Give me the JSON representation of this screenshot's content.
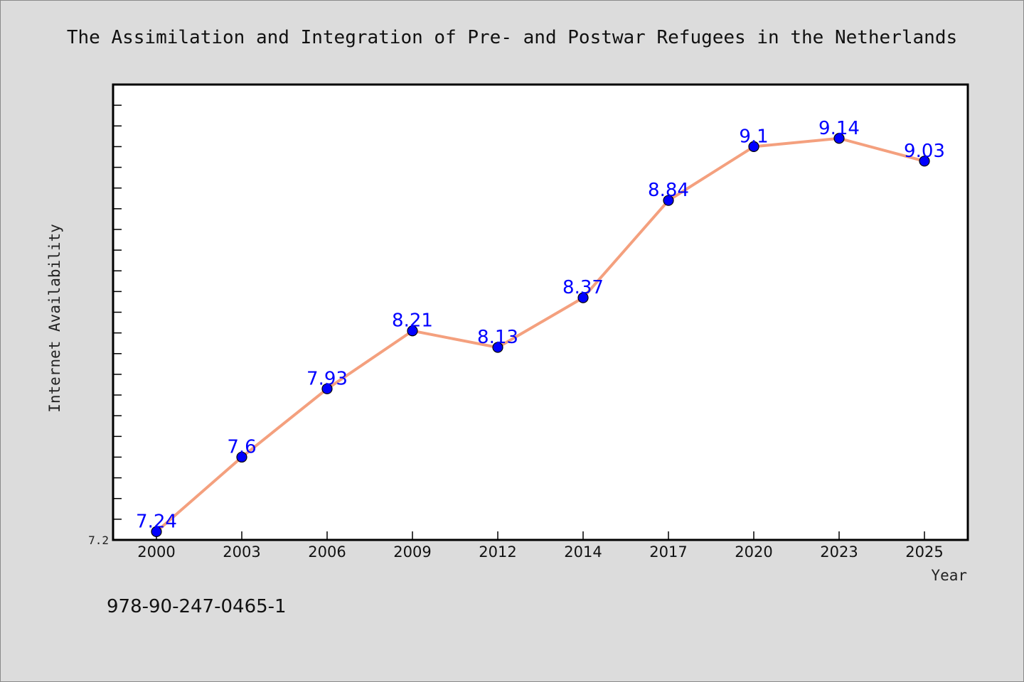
{
  "chart_data": {
    "type": "line",
    "title": "The Assimilation and Integration of Pre- and Postwar Refugees in the Netherlands",
    "xlabel": "Year",
    "ylabel": "Internet Availability",
    "categories": [
      "2000",
      "2003",
      "2006",
      "2009",
      "2012",
      "2014",
      "2017",
      "2020",
      "2023",
      "2025"
    ],
    "values": [
      7.24,
      7.6,
      7.93,
      8.21,
      8.13,
      8.37,
      8.84,
      9.1,
      9.14,
      9.03
    ],
    "data_labels": [
      "7.24",
      "7.6",
      "7.93",
      "8.21",
      "8.13",
      "8.37",
      "8.84",
      "9.1",
      "9.14",
      "9.03"
    ],
    "ylim": [
      7.2,
      9.4
    ],
    "yticks_labeled": [
      "7.2"
    ],
    "grid": false,
    "line_color": "#f4a07e",
    "marker_color": "#0000ff",
    "label_color": "#0000ff",
    "background_color": "#dcdcdc",
    "plot_background": "#ffffff"
  },
  "footer": {
    "isbn": "978-90-247-0465-1"
  }
}
